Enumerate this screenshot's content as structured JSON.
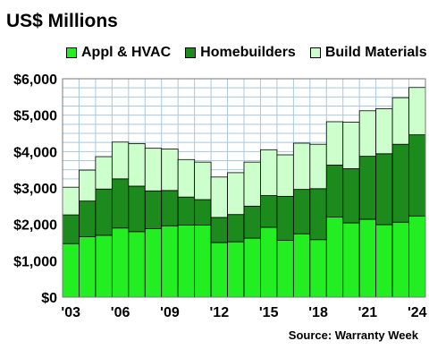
{
  "colors": {
    "appl_hvac": "#22ee22",
    "homebuilders": "#1c8a1c",
    "build_materials": "#ccffcc",
    "grid": "#a9c7de",
    "plot_border": "#7a7a7a"
  },
  "chart_data": {
    "type": "bar",
    "stacked": true,
    "title": "US$ Millions",
    "xlabel": "",
    "ylabel": "",
    "ylim": [
      0,
      6000
    ],
    "yticks": [
      0,
      1000,
      2000,
      3000,
      4000,
      5000,
      6000
    ],
    "ytick_labels": [
      "$0",
      "$1,000",
      "$2,000",
      "$3,000",
      "$4,000",
      "$5,000",
      "$6,000"
    ],
    "categories": [
      "2003",
      "2004",
      "2005",
      "2006",
      "2007",
      "2008",
      "2009",
      "2010",
      "2011",
      "2012",
      "2013",
      "2014",
      "2015",
      "2016",
      "2017",
      "2018",
      "2019",
      "2020",
      "2021",
      "2022",
      "2023",
      "2024"
    ],
    "xtick_labels": [
      {
        "index": 0,
        "label": "'03"
      },
      {
        "index": 3,
        "label": "'06"
      },
      {
        "index": 6,
        "label": "'09"
      },
      {
        "index": 9,
        "label": "'12"
      },
      {
        "index": 12,
        "label": "'15"
      },
      {
        "index": 15,
        "label": "'18"
      },
      {
        "index": 18,
        "label": "'21"
      },
      {
        "index": 21,
        "label": "'24"
      }
    ],
    "grid": true,
    "legend_position": "top",
    "series": [
      {
        "name": "Appl & HVAC",
        "color_key": "appl_hvac",
        "values": [
          1470,
          1660,
          1700,
          1900,
          1800,
          1880,
          1960,
          1980,
          1980,
          1500,
          1520,
          1620,
          1920,
          1560,
          1740,
          1580,
          2200,
          2040,
          2140,
          1990,
          2060,
          2230
        ]
      },
      {
        "name": "Homebuilders",
        "color_key": "homebuilders",
        "values": [
          790,
          980,
          1270,
          1350,
          1250,
          1040,
          970,
          770,
          700,
          690,
          750,
          880,
          870,
          1210,
          1220,
          1400,
          1430,
          1490,
          1730,
          1950,
          2140,
          2230
        ]
      },
      {
        "name": "Build Materials",
        "color_key": "build_materials",
        "values": [
          760,
          850,
          890,
          1010,
          1170,
          1170,
          1140,
          1030,
          1030,
          1110,
          1150,
          1210,
          1260,
          1140,
          1270,
          1220,
          1190,
          1280,
          1250,
          1240,
          1280,
          1300
        ]
      }
    ],
    "source": "Source: Warranty Week"
  }
}
